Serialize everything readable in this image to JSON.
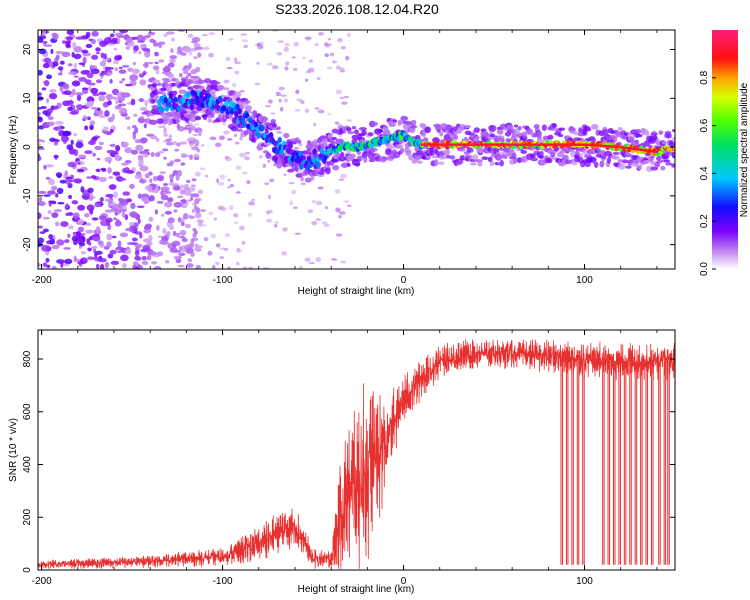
{
  "title": "S233.2026.108.12.04.R20",
  "chart_data": [
    {
      "type": "heatmap",
      "name": "spectrogram",
      "xlabel": "Height of straight line (km)",
      "ylabel": "Frequency (Hz)",
      "xlim": [
        -202,
        150
      ],
      "ylim": [
        -25,
        24
      ],
      "x_ticks": [
        -200,
        -100,
        0,
        100
      ],
      "y_ticks": [
        -20,
        -10,
        0,
        10,
        20
      ],
      "colorbar": {
        "label": "Normalized spectral amplitude",
        "range": [
          0,
          1
        ],
        "ticks": [
          0.0,
          0.2,
          0.4,
          0.6,
          0.8
        ]
      },
      "ridge": {
        "x": [
          -130,
          -110,
          -95,
          -85,
          -75,
          -65,
          -55,
          -45,
          -35,
          -25,
          -15,
          -5,
          0,
          5,
          10,
          20,
          40,
          60,
          80,
          100,
          120,
          140,
          150
        ],
        "freq": [
          9,
          10,
          8,
          5,
          2,
          -1,
          -3,
          -2,
          0,
          0,
          1,
          2,
          2.5,
          1,
          0.5,
          0.5,
          0.5,
          0.5,
          0.5,
          0.5,
          0,
          -1,
          0
        ]
      }
    },
    {
      "type": "line",
      "name": "snr",
      "xlabel": "Height of straight line (km)",
      "ylabel": "SNR (10 * v/v)",
      "xlim": [
        -202,
        150
      ],
      "ylim": [
        0,
        910
      ],
      "x_ticks": [
        -200,
        -100,
        0,
        100
      ],
      "y_ticks": [
        0,
        200,
        400,
        600,
        800
      ],
      "color": "#e83030",
      "envelope": {
        "x": [
          -202,
          -150,
          -100,
          -80,
          -70,
          -60,
          -50,
          -40,
          -35,
          -30,
          -25,
          -20,
          -15,
          -10,
          -5,
          0,
          10,
          20,
          30,
          40,
          60,
          80,
          100,
          120,
          150
        ],
        "mean": [
          20,
          30,
          50,
          100,
          140,
          170,
          40,
          40,
          200,
          300,
          330,
          380,
          420,
          470,
          570,
          640,
          730,
          790,
          810,
          820,
          820,
          810,
          800,
          790,
          790
        ],
        "amplitude": [
          15,
          20,
          30,
          60,
          70,
          70,
          40,
          30,
          200,
          250,
          300,
          300,
          250,
          150,
          110,
          90,
          70,
          60,
          55,
          50,
          50,
          55,
          60,
          60,
          60
        ]
      },
      "dropouts_x": [
        87,
        90,
        93,
        96,
        99,
        110,
        113,
        116,
        119,
        122,
        125,
        128,
        131,
        134,
        137,
        141,
        144,
        146
      ]
    }
  ]
}
